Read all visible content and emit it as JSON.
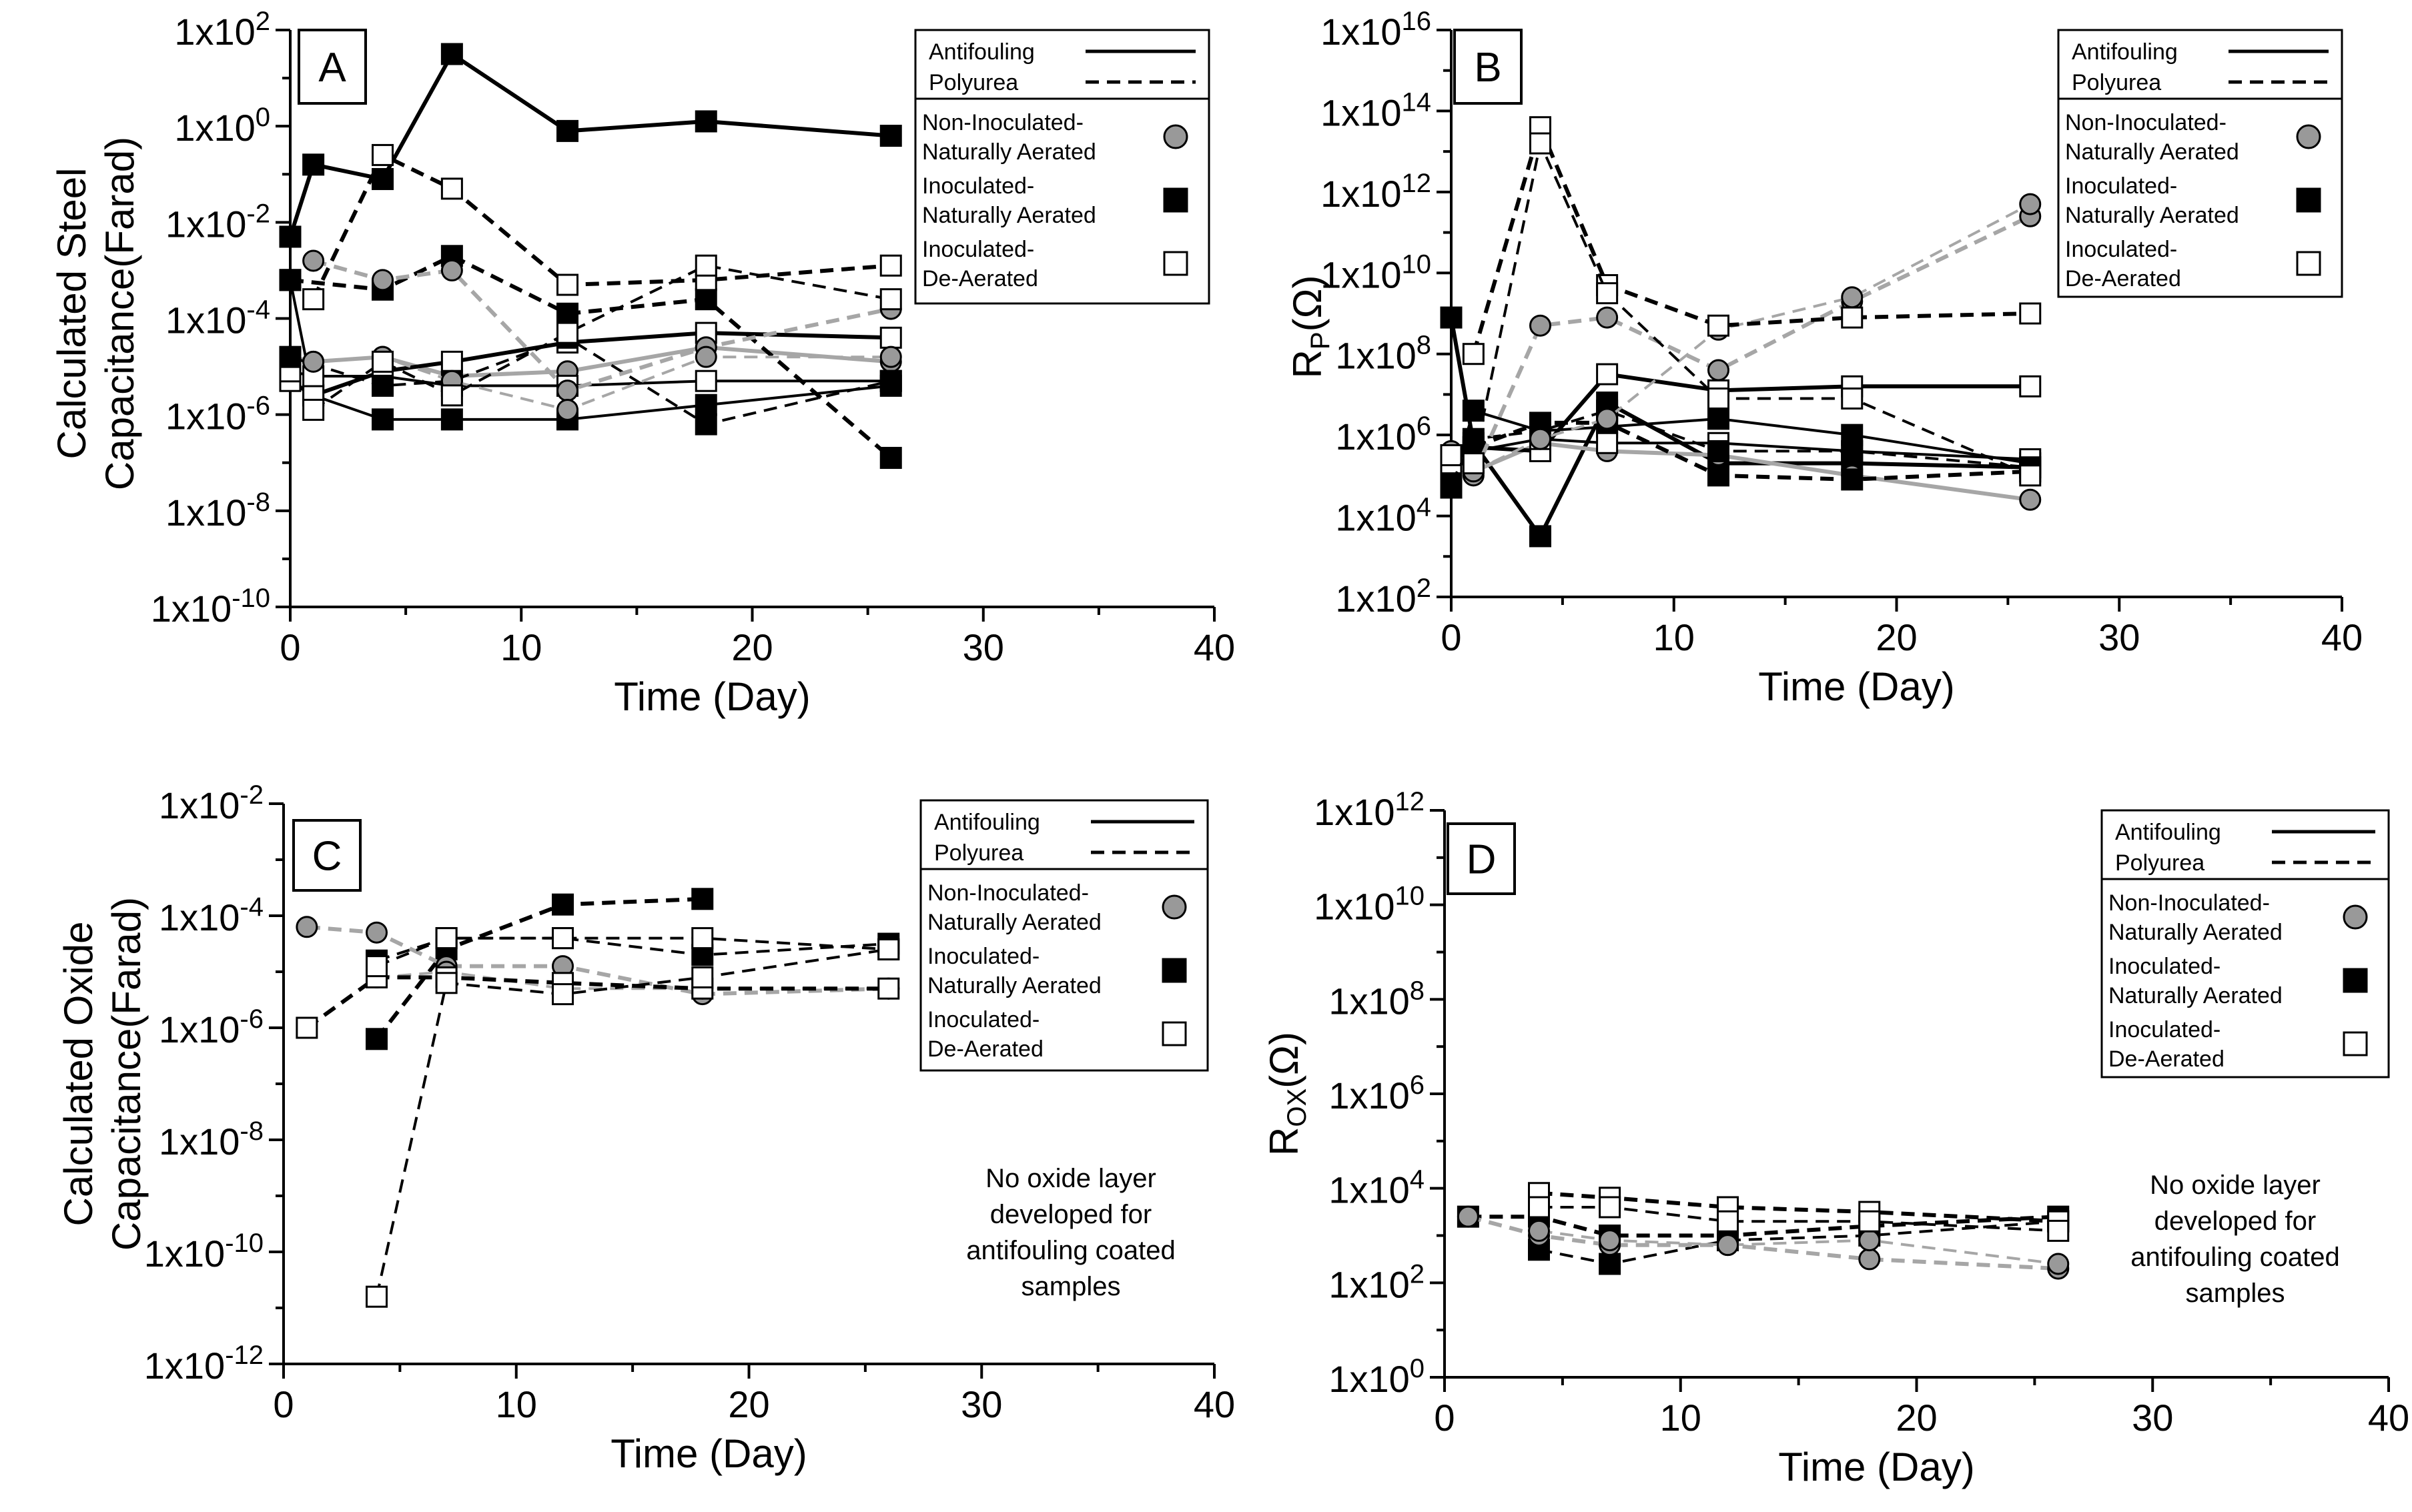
{
  "colors": {
    "axis": "#000000",
    "gray_series": "#a6a6a6",
    "gray_marker": "#999999",
    "black": "#000000",
    "white": "#ffffff"
  },
  "legend": {
    "line_styles": [
      "Antifouling",
      "Polyurea"
    ],
    "markers": [
      {
        "line1": "Non-Inoculated-",
        "line2": "Naturally Aerated",
        "marker": "circle-gray"
      },
      {
        "line1": "Inoculated-",
        "line2": "Naturally Aerated",
        "marker": "square-black"
      },
      {
        "line1": "Inoculated-",
        "line2": "De-Aerated",
        "marker": "square-white"
      }
    ]
  },
  "chart_data": [
    {
      "type": "scatter",
      "panel": "A",
      "xlabel": "Time (Day)",
      "ylabel_lines": [
        "Calculated Steel",
        "Capacitance(Farad)"
      ],
      "ylabel_sub": "",
      "xlim": [
        0,
        40
      ],
      "x_ticks": [
        "0",
        "10",
        "20",
        "30",
        "40"
      ],
      "x_tick_gray": false,
      "yscale": "log10",
      "ylim_exp": [
        -10,
        2
      ],
      "y_ticks": [
        {
          "b": "1x10",
          "e": "2"
        },
        {
          "b": "1x10",
          "e": "0"
        },
        {
          "b": "1x10",
          "e": "-2"
        },
        {
          "b": "1x10",
          "e": "-4"
        },
        {
          "b": "1x10",
          "e": "-6"
        },
        {
          "b": "1x10",
          "e": "-8"
        },
        {
          "b": "1x10",
          "e": "-10"
        }
      ],
      "note": [],
      "series": [
        {
          "name": "Antifouling, Inoculated-Naturally Aerated",
          "line": "solid",
          "marker": "square-black",
          "x": [
            0,
            1,
            4,
            7,
            12,
            18,
            26
          ],
          "y_log10": [
            -2.3,
            -0.8,
            -1.1,
            1.5,
            -0.1,
            0.1,
            -0.2
          ]
        },
        {
          "name": "Antifouling, Inoculated-Naturally Aerated (2)",
          "line": "solid",
          "marker": "square-black",
          "x": [
            0,
            1,
            4,
            7,
            12,
            18,
            26
          ],
          "y_log10": [
            -3.2,
            -5.6,
            -6.1,
            -6.1,
            -6.1,
            -5.8,
            -5.4
          ]
        },
        {
          "name": "Antifouling, Non-Inoculated-Naturally Aerated",
          "line": "solid",
          "marker": "circle-gray",
          "x": [
            0,
            1,
            4,
            7,
            12,
            18,
            26
          ],
          "y_log10": [
            -4.8,
            -4.9,
            -4.8,
            -5.2,
            -5.1,
            -4.6,
            -4.9
          ]
        },
        {
          "name": "Antifouling, Inoculated-De-Aerated",
          "line": "solid",
          "marker": "square-white",
          "x": [
            0,
            1,
            4,
            7,
            12,
            18,
            26
          ],
          "y_log10": [
            -5.3,
            -5.6,
            -5.1,
            -4.9,
            -4.5,
            -4.3,
            -4.4
          ]
        },
        {
          "name": "Antifouling, Inoculated-De-Aerated (2)",
          "line": "solid",
          "marker": "square-white",
          "x": [
            0,
            1,
            4,
            7,
            12,
            18,
            26
          ],
          "y_log10": [
            -5.1,
            -5.2,
            -5.2,
            -5.4,
            -5.4,
            -5.3,
            -5.3
          ]
        },
        {
          "name": "Polyurea, Inoculated-Naturally Aerated",
          "line": "dashed",
          "marker": "square-black",
          "x": [
            0,
            4,
            7,
            12,
            18,
            26
          ],
          "y_log10": [
            -3.2,
            -3.4,
            -2.7,
            -3.9,
            -3.6,
            -6.9
          ]
        },
        {
          "name": "Polyurea, Inoculated-Naturally Aerated (2)",
          "line": "dashed",
          "marker": "square-black",
          "x": [
            0,
            4,
            7,
            12,
            18,
            26
          ],
          "y_log10": [
            -4.8,
            -5.4,
            -5.3,
            -4.4,
            -6.2,
            -5.3
          ]
        },
        {
          "name": "Polyurea, Non-Inoculated-Naturally Aerated",
          "line": "dashed",
          "marker": "circle-gray",
          "x": [
            1,
            4,
            7,
            12,
            18,
            26
          ],
          "y_log10": [
            -2.8,
            -3.2,
            -3.0,
            -5.5,
            -4.6,
            -3.8
          ]
        },
        {
          "name": "Polyurea, Non-Inoculated-Naturally Aerated (2)",
          "line": "dashed",
          "marker": "circle-gray",
          "x": [
            1,
            4,
            7,
            12,
            18,
            26
          ],
          "y_log10": [
            -4.9,
            -4.8,
            -5.3,
            -5.9,
            -4.8,
            -4.8
          ]
        },
        {
          "name": "Polyurea, Inoculated-De-Aerated",
          "line": "dashed",
          "marker": "square-white",
          "x": [
            1,
            4,
            7,
            12,
            18,
            26
          ],
          "y_log10": [
            -3.6,
            -0.6,
            -1.3,
            -3.3,
            -3.2,
            -2.9
          ]
        },
        {
          "name": "Polyurea, Inoculated-De-Aerated (2)",
          "line": "dashed",
          "marker": "square-white",
          "x": [
            1,
            4,
            7,
            12,
            18,
            26
          ],
          "y_log10": [
            -5.9,
            -4.9,
            -5.6,
            -4.3,
            -2.9,
            -3.6
          ]
        }
      ]
    },
    {
      "type": "scatter",
      "panel": "B",
      "xlabel": "Time (Day)",
      "ylabel_lines": [
        "R"
      ],
      "ylabel_sub": "P",
      "ylabel_unit": "(Ω)",
      "xlim": [
        0,
        40
      ],
      "x_ticks": [
        "0",
        "10",
        "20",
        "30",
        "40"
      ],
      "x_tick_gray": false,
      "yscale": "log10",
      "ylim_exp": [
        2,
        16
      ],
      "y_ticks": [
        {
          "b": "1x10",
          "e": "16"
        },
        {
          "b": "1x10",
          "e": "14"
        },
        {
          "b": "1x10",
          "e": "12"
        },
        {
          "b": "1x10",
          "e": "10"
        },
        {
          "b": "1x10",
          "e": "8"
        },
        {
          "b": "1x10",
          "e": "6"
        },
        {
          "b": "1x10",
          "e": "4"
        },
        {
          "b": "1x10",
          "e": "2"
        }
      ],
      "note": [],
      "series": [
        {
          "name": "Antifouling, Inoculated-Naturally Aerated",
          "line": "solid",
          "marker": "square-black",
          "x": [
            0,
            1,
            4,
            7,
            12,
            18,
            26
          ],
          "y_log10": [
            8.9,
            5.8,
            3.5,
            6.8,
            5.3,
            5.3,
            5.2
          ]
        },
        {
          "name": "Antifouling, Inoculated-Naturally Aerated (2)",
          "line": "solid",
          "marker": "square-black",
          "x": [
            0,
            1,
            4,
            7,
            12,
            18,
            26
          ],
          "y_log10": [
            4.7,
            6.6,
            6.1,
            6.2,
            6.4,
            6.0,
            5.3
          ]
        },
        {
          "name": "Antifouling, Non-Inoculated-Naturally Aerated",
          "line": "solid",
          "marker": "circle-gray",
          "x": [
            0,
            1,
            4,
            7,
            12,
            18,
            26
          ],
          "y_log10": [
            5.6,
            5.1,
            5.8,
            5.6,
            5.5,
            5.0,
            4.4
          ]
        },
        {
          "name": "Antifouling, Inoculated-De-Aerated",
          "line": "solid",
          "marker": "square-white",
          "x": [
            0,
            1,
            4,
            7,
            12,
            18,
            26
          ],
          "y_log10": [
            5.3,
            5.7,
            5.6,
            7.5,
            7.1,
            7.2,
            7.2
          ]
        },
        {
          "name": "Antifouling, Inoculated-De-Aerated (2)",
          "line": "solid",
          "marker": "square-white",
          "x": [
            0,
            1,
            4,
            7,
            12,
            18,
            26
          ],
          "y_log10": [
            5.5,
            5.6,
            5.9,
            5.8,
            5.8,
            5.6,
            5.4
          ]
        },
        {
          "name": "Polyurea, Inoculated-Naturally Aerated",
          "line": "dashed",
          "marker": "square-black",
          "x": [
            0,
            1,
            4,
            7,
            12,
            18,
            26
          ],
          "y_log10": [
            4.8,
            5.7,
            6.3,
            6.3,
            5.0,
            4.9,
            5.1
          ]
        },
        {
          "name": "Polyurea, Inoculated-Naturally Aerated (2)",
          "line": "dashed",
          "marker": "square-black",
          "x": [
            0,
            1,
            4,
            7,
            12,
            18,
            26
          ],
          "y_log10": [
            4.8,
            5.9,
            6.1,
            6.6,
            5.6,
            5.6,
            5.2
          ]
        },
        {
          "name": "Polyurea, Non-Inoculated-Naturally Aerated",
          "line": "dashed",
          "marker": "circle-gray",
          "x": [
            1,
            4,
            7,
            12,
            18,
            26
          ],
          "y_log10": [
            5.0,
            8.7,
            8.9,
            7.6,
            9.3,
            11.4
          ]
        },
        {
          "name": "Polyurea, Non-Inoculated-Naturally Aerated (2)",
          "line": "dashed",
          "marker": "circle-gray",
          "x": [
            1,
            4,
            7,
            12,
            18,
            26
          ],
          "y_log10": [
            5.1,
            5.9,
            6.4,
            8.6,
            9.4,
            11.7
          ]
        },
        {
          "name": "Polyurea, Inoculated-De-Aerated",
          "line": "dashed",
          "marker": "square-white",
          "x": [
            1,
            4,
            7,
            12,
            18,
            26
          ],
          "y_log10": [
            8.0,
            13.6,
            9.7,
            8.7,
            8.9,
            9.0
          ]
        },
        {
          "name": "Polyurea, Inoculated-De-Aerated (2)",
          "line": "dashed",
          "marker": "square-white",
          "x": [
            1,
            4,
            7,
            12,
            18,
            26
          ],
          "y_log10": [
            5.3,
            13.2,
            9.5,
            6.9,
            6.9,
            5.0
          ]
        }
      ]
    },
    {
      "type": "scatter",
      "panel": "C",
      "xlabel": "Time (Day)",
      "ylabel_lines": [
        "Calculated Oxide",
        "Capacitance(Farad)"
      ],
      "ylabel_sub": "",
      "xlim": [
        0,
        40
      ],
      "x_ticks": [
        "0",
        "10",
        "20",
        "30",
        "40"
      ],
      "x_tick_gray": true,
      "yscale": "log10",
      "ylim_exp": [
        -12,
        -2
      ],
      "y_ticks": [
        {
          "b": "1x10",
          "e": "-2"
        },
        {
          "b": "1x10",
          "e": "-4"
        },
        {
          "b": "1x10",
          "e": "-6"
        },
        {
          "b": "1x10",
          "e": "-8"
        },
        {
          "b": "1x10",
          "e": "-10"
        },
        {
          "b": "1x10",
          "e": "-12"
        }
      ],
      "note": [
        "No oxide layer",
        "developed for",
        "antifouling coated",
        "samples"
      ],
      "series": [
        {
          "name": "Polyurea, Inoculated-Naturally Aerated",
          "line": "dashed",
          "marker": "square-black",
          "x": [
            4,
            7,
            12,
            18
          ],
          "y_log10": [
            -6.2,
            -4.6,
            -3.8,
            -3.7
          ]
        },
        {
          "name": "Polyurea, Inoculated-Naturally Aerated (2)",
          "line": "dashed",
          "marker": "square-black",
          "x": [
            4,
            7,
            12,
            18,
            26
          ],
          "y_log10": [
            -4.8,
            -4.4,
            -4.4,
            -4.7,
            -4.5
          ]
        },
        {
          "name": "Polyurea, Non-Inoculated-Naturally Aerated",
          "line": "dashed",
          "marker": "circle-gray",
          "x": [
            1,
            4,
            7,
            12,
            18,
            26
          ],
          "y_log10": [
            -4.2,
            -4.3,
            -4.9,
            -4.9,
            -5.4,
            -5.3
          ]
        },
        {
          "name": "Polyurea, Non-Inoculated-Naturally Aerated (2)",
          "line": "dashed",
          "marker": "circle-gray",
          "x": [
            4,
            7,
            12,
            18,
            26
          ],
          "y_log10": [
            -5.1,
            -5.0,
            -5.3,
            -5.3,
            -5.3
          ]
        },
        {
          "name": "Polyurea, Inoculated-De-Aerated",
          "line": "dashed",
          "marker": "square-white",
          "x": [
            1,
            4,
            7,
            12,
            18,
            26
          ],
          "y_log10": [
            -6.0,
            -5.1,
            -5.1,
            -5.2,
            -5.3,
            -5.3
          ]
        },
        {
          "name": "Polyurea, Inoculated-De-Aerated (2)",
          "line": "dashed",
          "marker": "square-white",
          "x": [
            4,
            7,
            12,
            18,
            26
          ],
          "y_log10": [
            -10.8,
            -5.2,
            -5.4,
            -5.1,
            -4.6
          ]
        },
        {
          "name": "Polyurea, Inoculated-De-Aerated (3)",
          "line": "dashed",
          "marker": "square-white",
          "x": [
            4,
            7,
            12,
            18,
            26
          ],
          "y_log10": [
            -4.9,
            -4.4,
            -4.4,
            -4.4,
            -4.6
          ]
        }
      ]
    },
    {
      "type": "scatter",
      "panel": "D",
      "xlabel": "Time (Day)",
      "ylabel_lines": [
        "R"
      ],
      "ylabel_sub": "OX",
      "ylabel_unit": "(Ω)",
      "xlim": [
        0,
        40
      ],
      "x_ticks": [
        "0",
        "10",
        "20",
        "30",
        "40"
      ],
      "x_tick_gray": true,
      "yscale": "log10",
      "ylim_exp": [
        0,
        12
      ],
      "y_ticks": [
        {
          "b": "1x10",
          "e": "12"
        },
        {
          "b": "1x10",
          "e": "10"
        },
        {
          "b": "1x10",
          "e": "8"
        },
        {
          "b": "1x10",
          "e": "6"
        },
        {
          "b": "1x10",
          "e": "4"
        },
        {
          "b": "1x10",
          "e": "2"
        },
        {
          "b": "1x10",
          "e": "0"
        }
      ],
      "note": [
        "No oxide layer",
        "developed for",
        "antifouling coated",
        "samples"
      ],
      "series": [
        {
          "name": "Polyurea, Inoculated-Naturally Aerated",
          "line": "dashed",
          "marker": "square-black",
          "x": [
            1,
            4,
            7,
            12,
            18,
            26
          ],
          "y_log10": [
            3.4,
            3.4,
            3.0,
            3.0,
            3.2,
            3.4
          ]
        },
        {
          "name": "Polyurea, Inoculated-Naturally Aerated (2)",
          "line": "dashed",
          "marker": "square-black",
          "x": [
            4,
            7,
            12,
            18,
            26
          ],
          "y_log10": [
            2.7,
            2.4,
            2.9,
            3.0,
            3.3
          ]
        },
        {
          "name": "Polyurea, Non-Inoculated-Naturally Aerated",
          "line": "dashed",
          "marker": "circle-gray",
          "x": [
            1,
            4,
            7,
            12,
            18,
            26
          ],
          "y_log10": [
            3.4,
            3.0,
            2.8,
            2.8,
            2.5,
            2.3
          ]
        },
        {
          "name": "Polyurea, Non-Inoculated-Naturally Aerated (2)",
          "line": "dashed",
          "marker": "circle-gray",
          "x": [
            4,
            7,
            12,
            18,
            26
          ],
          "y_log10": [
            3.1,
            2.9,
            2.8,
            2.9,
            2.4
          ]
        },
        {
          "name": "Polyurea, Inoculated-De-Aerated",
          "line": "dashed",
          "marker": "square-white",
          "x": [
            4,
            7,
            12,
            18,
            26
          ],
          "y_log10": [
            3.9,
            3.8,
            3.6,
            3.5,
            3.3
          ]
        },
        {
          "name": "Polyurea, Inoculated-De-Aerated (2)",
          "line": "dashed",
          "marker": "square-white",
          "x": [
            4,
            7,
            12,
            18,
            26
          ],
          "y_log10": [
            3.6,
            3.6,
            3.3,
            3.3,
            3.1
          ]
        }
      ]
    }
  ]
}
